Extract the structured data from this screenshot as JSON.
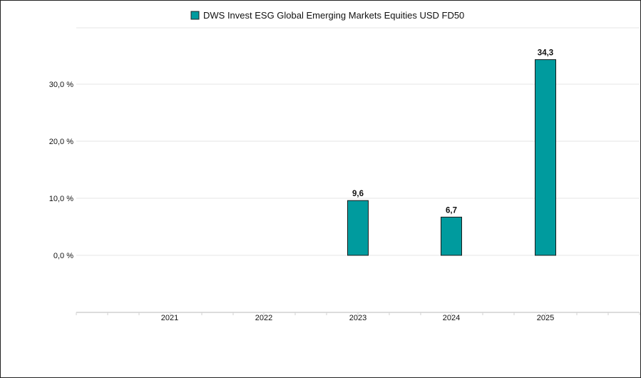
{
  "chart_data": {
    "type": "bar",
    "categories": [
      "2021",
      "2022",
      "2023",
      "2024",
      "2025"
    ],
    "series": [
      {
        "name": "DWS Invest ESG Global Emerging Markets Equities USD FD50",
        "values": [
          null,
          null,
          9.6,
          6.7,
          34.3
        ],
        "value_labels": [
          "",
          "",
          "9,6",
          "6,7",
          "34,3"
        ],
        "color": "#009b9e"
      }
    ],
    "y_ticks": [
      0,
      10,
      20,
      30
    ],
    "y_tick_labels": [
      "0,0 %",
      "10,0 %",
      "20,0 %",
      "30,0 %"
    ],
    "ylim": [
      -10,
      40
    ],
    "grid": true,
    "legend_position": "top-center"
  }
}
